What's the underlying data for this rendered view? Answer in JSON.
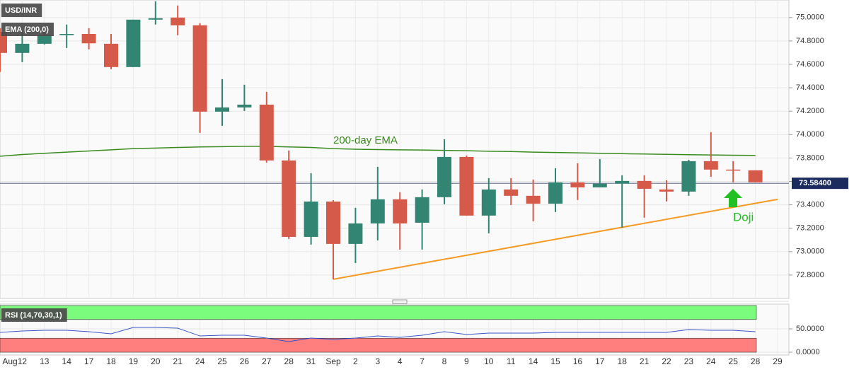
{
  "chart_data": [
    {
      "type": "candlestick",
      "title": "USD/INR",
      "categories": [
        "Aug",
        "12",
        "13",
        "14",
        "17",
        "18",
        "19",
        "20",
        "21",
        "24",
        "25",
        "26",
        "27",
        "28",
        "31",
        "Sep",
        "2",
        "3",
        "4",
        "7",
        "8",
        "9",
        "10",
        "11",
        "14",
        "15",
        "16",
        "17",
        "18",
        "21",
        "22",
        "23",
        "24",
        "25",
        "28",
        "29"
      ],
      "open": [
        74.879,
        74.698,
        74.776,
        74.85,
        74.86,
        74.776,
        74.577,
        74.982,
        75.0,
        74.934,
        74.196,
        74.232,
        74.256,
        73.779,
        73.126,
        73.428,
        73.066,
        73.241,
        73.447,
        73.247,
        73.465,
        73.809,
        73.308,
        73.531,
        73.477,
        73.41,
        73.592,
        73.549,
        73.58,
        73.604,
        73.531,
        73.513,
        73.773,
        73.701,
        73.695,
        null
      ],
      "high": [
        74.909,
        74.879,
        74.909,
        74.94,
        74.909,
        74.86,
        74.982,
        75.139,
        75.103,
        74.952,
        74.474,
        74.426,
        74.365,
        73.864,
        73.67,
        73.44,
        73.374,
        73.725,
        73.507,
        73.531,
        73.96,
        73.821,
        73.628,
        73.628,
        73.616,
        73.713,
        73.755,
        73.791,
        73.652,
        73.652,
        73.61,
        73.785,
        74.021,
        73.773,
        73.695,
        null
      ],
      "low": [
        74.535,
        74.619,
        74.77,
        74.74,
        74.728,
        74.559,
        74.577,
        74.94,
        74.849,
        74.015,
        74.075,
        74.202,
        73.761,
        73.108,
        73.06,
        72.764,
        72.903,
        73.096,
        73.018,
        73.018,
        73.404,
        73.308,
        73.157,
        73.398,
        73.259,
        73.338,
        73.441,
        73.549,
        73.205,
        73.29,
        73.429,
        73.477,
        73.64,
        73.592,
        73.592,
        null
      ],
      "close": [
        74.698,
        74.776,
        74.85,
        74.86,
        74.78,
        74.577,
        74.982,
        74.994,
        74.934,
        74.196,
        74.232,
        74.256,
        73.779,
        73.126,
        73.428,
        73.066,
        73.241,
        73.447,
        73.241,
        73.465,
        73.809,
        73.308,
        73.531,
        73.477,
        73.41,
        73.592,
        73.549,
        73.58,
        73.604,
        73.537,
        73.513,
        73.773,
        73.701,
        73.695,
        73.592,
        null
      ],
      "up_color": "#338573",
      "down_color": "#d65a4a",
      "series": [
        {
          "name": "EMA (200,0)",
          "color": "#3b8a1e",
          "values": [
            73.815,
            73.83,
            73.84,
            73.85,
            73.86,
            73.87,
            73.88,
            73.885,
            73.89,
            73.895,
            73.897,
            73.9,
            73.9,
            73.895,
            73.89,
            73.88,
            73.875,
            73.872,
            73.87,
            73.868,
            73.865,
            73.862,
            73.858,
            73.855,
            73.85,
            73.847,
            73.844,
            73.84,
            73.837,
            73.834,
            73.831,
            73.828,
            73.826,
            73.824,
            73.822,
            null
          ]
        }
      ],
      "trend_line": {
        "categories": [
          "Sep",
          "29"
        ],
        "values": [
          72.764,
          73.447
        ],
        "color": "#f59a23"
      },
      "annotations": [
        "200-day EMA",
        "Doji"
      ],
      "last_price": {
        "value": 73.584,
        "label": "73.58400"
      },
      "ylim": [
        72.6,
        75.15
      ],
      "yticks": [
        {
          "value": 72.8,
          "label": "72.8000"
        },
        {
          "value": 73.0,
          "label": "73.0000"
        },
        {
          "value": 73.2,
          "label": "73.2000"
        },
        {
          "value": 73.4,
          "label": "73.4000"
        },
        {
          "value": 73.6,
          "label": "73.6000"
        },
        {
          "value": 73.8,
          "label": "73.8000"
        },
        {
          "value": 74.0,
          "label": "74.0000"
        },
        {
          "value": 74.2,
          "label": "74.2000"
        },
        {
          "value": 74.4,
          "label": "74.4000"
        },
        {
          "value": 74.6,
          "label": "74.6000"
        },
        {
          "value": 74.8,
          "label": "74.8000"
        },
        {
          "value": 75.0,
          "label": "75.0000"
        }
      ],
      "grid": true
    },
    {
      "type": "line",
      "series": [
        {
          "name": "RSI (14,70,30,1)",
          "color": "#3a56c8",
          "values": [
            42.4,
            45.5,
            47,
            47,
            43.9,
            39.4,
            53,
            53,
            51.5,
            34.8,
            36.4,
            36.4,
            30.3,
            22.7,
            30.3,
            27.3,
            30.3,
            34.8,
            31.8,
            36.4,
            43.9,
            37.9,
            40.9,
            40.9,
            40.9,
            42.4,
            42.4,
            42.4,
            42.4,
            42.4,
            42.4,
            48.5,
            47,
            47,
            43.9,
            null
          ]
        }
      ],
      "bands": [
        {
          "range": [
            70,
            100
          ],
          "color": "#7cfc7c"
        },
        {
          "range": [
            0,
            30
          ],
          "color": "#ff7f7f"
        }
      ],
      "ylim": [
        -6,
        103
      ],
      "yticks": [
        {
          "value": 0,
          "label": "0.0000"
        },
        {
          "value": 50,
          "label": "50.0000"
        }
      ],
      "grid": true
    }
  ]
}
